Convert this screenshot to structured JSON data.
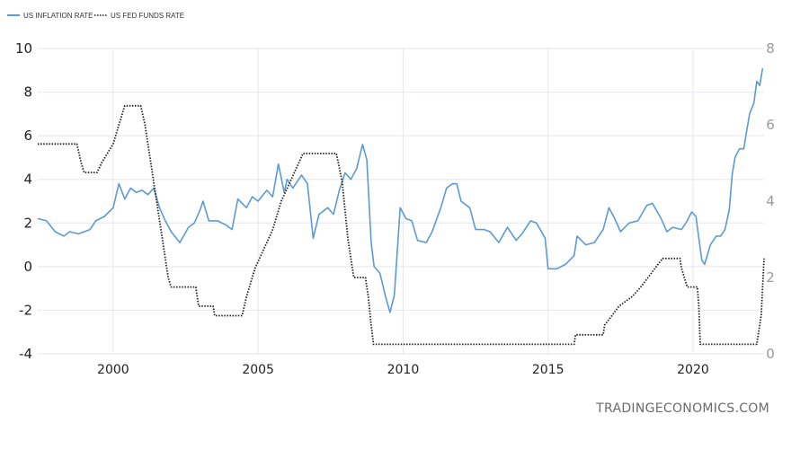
{
  "chart_data": {
    "type": "line",
    "title": "",
    "xlabel": "",
    "ylabel": "",
    "xlim": [
      1997.4,
      2022.45
    ],
    "xticks": [
      "2000",
      "2005",
      "2010",
      "2015",
      "2020"
    ],
    "left_axis": {
      "ylim": [
        -4,
        10
      ],
      "ticks": [
        "10",
        "8",
        "6",
        "4",
        "2",
        "0",
        "-2",
        "-4"
      ]
    },
    "right_axis": {
      "ylim": [
        0,
        8
      ],
      "ticks": [
        "8",
        "6",
        "4",
        "2",
        "0"
      ]
    },
    "grid": true,
    "legend_position": "top-left",
    "series": [
      {
        "name": "US INFLATION RATE",
        "axis": "left",
        "color": "#5b9bd5",
        "style": "solid",
        "points": [
          [
            1997.4,
            2.2
          ],
          [
            1997.7,
            2.1
          ],
          [
            1998.0,
            1.6
          ],
          [
            1998.3,
            1.4
          ],
          [
            1998.5,
            1.6
          ],
          [
            1998.8,
            1.5
          ],
          [
            1999.0,
            1.6
          ],
          [
            1999.2,
            1.7
          ],
          [
            1999.4,
            2.1
          ],
          [
            1999.7,
            2.3
          ],
          [
            2000.0,
            2.7
          ],
          [
            2000.2,
            3.8
          ],
          [
            2000.4,
            3.1
          ],
          [
            2000.6,
            3.6
          ],
          [
            2000.8,
            3.4
          ],
          [
            2001.0,
            3.5
          ],
          [
            2001.2,
            3.3
          ],
          [
            2001.4,
            3.6
          ],
          [
            2001.6,
            2.7
          ],
          [
            2001.8,
            2.1
          ],
          [
            2002.0,
            1.6
          ],
          [
            2002.3,
            1.1
          ],
          [
            2002.6,
            1.8
          ],
          [
            2002.8,
            2.0
          ],
          [
            2003.0,
            2.6
          ],
          [
            2003.1,
            3.0
          ],
          [
            2003.3,
            2.1
          ],
          [
            2003.6,
            2.1
          ],
          [
            2003.9,
            1.9
          ],
          [
            2004.1,
            1.7
          ],
          [
            2004.3,
            3.1
          ],
          [
            2004.6,
            2.7
          ],
          [
            2004.8,
            3.2
          ],
          [
            2005.0,
            3.0
          ],
          [
            2005.3,
            3.5
          ],
          [
            2005.5,
            3.2
          ],
          [
            2005.7,
            4.7
          ],
          [
            2005.9,
            3.4
          ],
          [
            2006.0,
            4.0
          ],
          [
            2006.2,
            3.6
          ],
          [
            2006.5,
            4.2
          ],
          [
            2006.7,
            3.8
          ],
          [
            2006.9,
            1.3
          ],
          [
            2007.1,
            2.4
          ],
          [
            2007.4,
            2.7
          ],
          [
            2007.6,
            2.4
          ],
          [
            2007.8,
            3.5
          ],
          [
            2008.0,
            4.3
          ],
          [
            2008.2,
            4.0
          ],
          [
            2008.4,
            4.5
          ],
          [
            2008.6,
            5.6
          ],
          [
            2008.75,
            4.9
          ],
          [
            2008.9,
            1.1
          ],
          [
            2009.0,
            0.0
          ],
          [
            2009.2,
            -0.3
          ],
          [
            2009.4,
            -1.4
          ],
          [
            2009.55,
            -2.1
          ],
          [
            2009.7,
            -1.3
          ],
          [
            2009.9,
            2.7
          ],
          [
            2010.1,
            2.2
          ],
          [
            2010.3,
            2.1
          ],
          [
            2010.5,
            1.2
          ],
          [
            2010.8,
            1.1
          ],
          [
            2011.0,
            1.6
          ],
          [
            2011.3,
            2.7
          ],
          [
            2011.5,
            3.6
          ],
          [
            2011.7,
            3.8
          ],
          [
            2011.85,
            3.8
          ],
          [
            2012.0,
            3.0
          ],
          [
            2012.3,
            2.7
          ],
          [
            2012.5,
            1.7
          ],
          [
            2012.8,
            1.7
          ],
          [
            2013.0,
            1.6
          ],
          [
            2013.3,
            1.1
          ],
          [
            2013.6,
            1.8
          ],
          [
            2013.9,
            1.2
          ],
          [
            2014.1,
            1.5
          ],
          [
            2014.4,
            2.1
          ],
          [
            2014.6,
            2.0
          ],
          [
            2014.9,
            1.3
          ],
          [
            2015.0,
            -0.1
          ],
          [
            2015.3,
            -0.1
          ],
          [
            2015.6,
            0.1
          ],
          [
            2015.9,
            0.5
          ],
          [
            2016.0,
            1.4
          ],
          [
            2016.3,
            1.0
          ],
          [
            2016.6,
            1.1
          ],
          [
            2016.9,
            1.7
          ],
          [
            2017.1,
            2.7
          ],
          [
            2017.3,
            2.2
          ],
          [
            2017.5,
            1.6
          ],
          [
            2017.8,
            2.0
          ],
          [
            2018.1,
            2.1
          ],
          [
            2018.4,
            2.8
          ],
          [
            2018.6,
            2.9
          ],
          [
            2018.9,
            2.2
          ],
          [
            2019.1,
            1.6
          ],
          [
            2019.3,
            1.8
          ],
          [
            2019.6,
            1.7
          ],
          [
            2019.8,
            2.1
          ],
          [
            2019.95,
            2.5
          ],
          [
            2020.1,
            2.3
          ],
          [
            2020.3,
            0.3
          ],
          [
            2020.4,
            0.1
          ],
          [
            2020.6,
            1.0
          ],
          [
            2020.8,
            1.4
          ],
          [
            2020.95,
            1.4
          ],
          [
            2021.1,
            1.7
          ],
          [
            2021.25,
            2.6
          ],
          [
            2021.35,
            4.2
          ],
          [
            2021.45,
            5.0
          ],
          [
            2021.6,
            5.4
          ],
          [
            2021.75,
            5.4
          ],
          [
            2021.85,
            6.2
          ],
          [
            2021.95,
            7.0
          ],
          [
            2022.1,
            7.5
          ],
          [
            2022.2,
            8.5
          ],
          [
            2022.3,
            8.3
          ],
          [
            2022.4,
            9.1
          ]
        ]
      },
      {
        "name": "US FED FUNDS RATE",
        "axis": "right",
        "color": "#222222",
        "style": "dotted",
        "points": [
          [
            1997.4,
            5.5
          ],
          [
            1998.75,
            5.5
          ],
          [
            1998.9,
            5.0
          ],
          [
            1999.0,
            4.75
          ],
          [
            1999.45,
            4.75
          ],
          [
            1999.6,
            5.0
          ],
          [
            1999.8,
            5.25
          ],
          [
            2000.0,
            5.5
          ],
          [
            2000.2,
            6.0
          ],
          [
            2000.4,
            6.5
          ],
          [
            2000.95,
            6.5
          ],
          [
            2001.1,
            6.0
          ],
          [
            2001.3,
            5.0
          ],
          [
            2001.5,
            4.0
          ],
          [
            2001.7,
            3.0
          ],
          [
            2001.9,
            2.0
          ],
          [
            2002.0,
            1.75
          ],
          [
            2002.85,
            1.75
          ],
          [
            2002.95,
            1.25
          ],
          [
            2003.45,
            1.25
          ],
          [
            2003.5,
            1.0
          ],
          [
            2004.45,
            1.0
          ],
          [
            2004.6,
            1.5
          ],
          [
            2004.9,
            2.25
          ],
          [
            2005.2,
            2.75
          ],
          [
            2005.5,
            3.25
          ],
          [
            2005.8,
            4.0
          ],
          [
            2006.1,
            4.5
          ],
          [
            2006.4,
            5.0
          ],
          [
            2006.55,
            5.25
          ],
          [
            2007.7,
            5.25
          ],
          [
            2007.9,
            4.5
          ],
          [
            2008.0,
            3.75
          ],
          [
            2008.1,
            3.0
          ],
          [
            2008.3,
            2.0
          ],
          [
            2008.7,
            2.0
          ],
          [
            2008.8,
            1.5
          ],
          [
            2008.9,
            0.75
          ],
          [
            2008.98,
            0.25
          ],
          [
            2015.9,
            0.25
          ],
          [
            2015.95,
            0.5
          ],
          [
            2016.9,
            0.5
          ],
          [
            2016.95,
            0.75
          ],
          [
            2017.2,
            1.0
          ],
          [
            2017.45,
            1.25
          ],
          [
            2017.9,
            1.5
          ],
          [
            2018.2,
            1.75
          ],
          [
            2018.45,
            2.0
          ],
          [
            2018.7,
            2.25
          ],
          [
            2018.95,
            2.5
          ],
          [
            2019.55,
            2.5
          ],
          [
            2019.6,
            2.25
          ],
          [
            2019.7,
            2.0
          ],
          [
            2019.8,
            1.75
          ],
          [
            2020.15,
            1.75
          ],
          [
            2020.2,
            1.25
          ],
          [
            2020.25,
            0.25
          ],
          [
            2022.2,
            0.25
          ],
          [
            2022.25,
            0.5
          ],
          [
            2022.35,
            1.0
          ],
          [
            2022.45,
            2.5
          ]
        ]
      }
    ]
  },
  "legend": {
    "items": [
      {
        "label": "US INFLATION RATE",
        "color": "#5b9bd5",
        "style": "solid"
      },
      {
        "label": "US FED FUNDS RATE",
        "color": "#222222",
        "style": "dotted"
      }
    ]
  },
  "watermark": "TRADINGECONOMICS.COM"
}
